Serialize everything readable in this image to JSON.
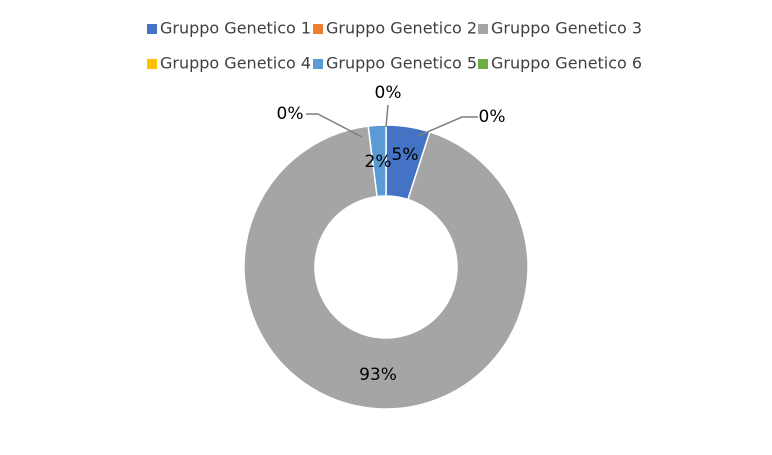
{
  "chart_data": {
    "type": "doughnut",
    "series": [
      {
        "name": "Gruppo Genetico 1",
        "color": "#4472c4",
        "values": [
          5
        ],
        "value_labels": [
          "5%"
        ]
      },
      {
        "name": "Gruppo Genetico 2",
        "color": "#ed7d31",
        "values": [
          0
        ],
        "value_labels": [
          "0%"
        ]
      },
      {
        "name": "Gruppo Genetico 3",
        "color": "#a5a5a5",
        "values": [
          93
        ],
        "value_labels": [
          "93%"
        ]
      },
      {
        "name": "Gruppo Genetico 4",
        "color": "#ffc000",
        "values": [
          0
        ],
        "value_labels": [
          "0%"
        ]
      },
      {
        "name": "Gruppo Genetico 5",
        "color": "#5b9bd5",
        "values": [
          2
        ],
        "value_labels": [
          "2%"
        ]
      },
      {
        "name": "Gruppo Genetico 6",
        "color": "#70ad47",
        "values": [
          0
        ],
        "value_labels": [
          "0%"
        ]
      }
    ],
    "legend": "top"
  }
}
